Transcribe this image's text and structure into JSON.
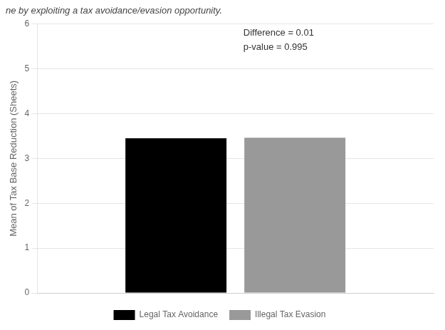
{
  "chart_data": {
    "type": "bar",
    "title": "ne by exploiting a tax avoidance/evasion opportunity.",
    "ylabel": "Mean of Tax Base Reduction (Sheets)",
    "annotation": "Difference = 0.01\np-value = 0.995",
    "categories": [
      null
    ],
    "series": [
      {
        "name": "Legal Tax Avoidance",
        "color": "#000000",
        "values": [
          3.45
        ]
      },
      {
        "name": "Illegal Tax Evasion",
        "color": "#999999",
        "values": [
          3.46
        ]
      }
    ],
    "ylim": [
      0,
      6
    ],
    "yticks": [
      0,
      1,
      2,
      3,
      4,
      5,
      6
    ],
    "grid": true,
    "legend": "bottom",
    "tick_labels": "y"
  }
}
